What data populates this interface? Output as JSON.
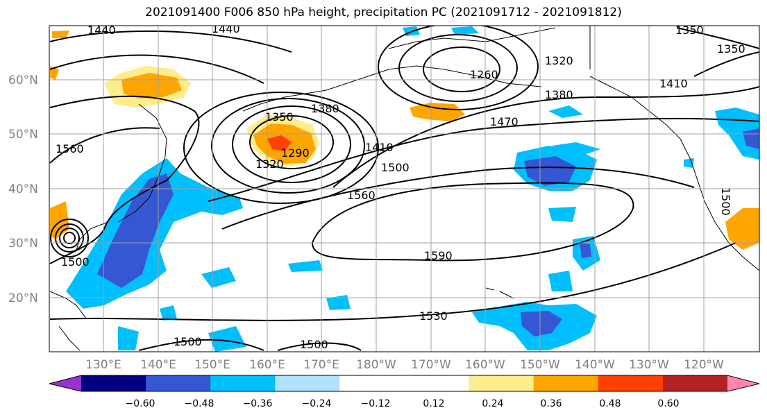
{
  "title": "2021091400 F006 850 hPa height, precipitation PC (2021091712 - 2021091812)",
  "lat_labels": [
    "60°N",
    "50°N",
    "40°N",
    "30°N",
    "20°N"
  ],
  "lon_labels": [
    "130°E",
    "140°E",
    "150°E",
    "160°E",
    "170°E",
    "180°W",
    "170°W",
    "160°W",
    "150°W",
    "140°W",
    "130°W",
    "120°W"
  ],
  "contour_labels": [
    "1440",
    "1440",
    "1350",
    "1350",
    "1320",
    "1260",
    "1380",
    "1410",
    "1380",
    "1470",
    "1350",
    "1290",
    "1320",
    "1410",
    "1500",
    "1560",
    "1560",
    "1590",
    "1530",
    "1500",
    "1500",
    "1500",
    "1500"
  ],
  "colorbar": {
    "colors": [
      "#9932cc",
      "#000080",
      "#3557d4",
      "#00bfff",
      "#b0e2ff",
      "#ffffff",
      "#ffffff",
      "#ffec8b",
      "#ffa500",
      "#ff4000",
      "#b22222",
      "#ff88b0"
    ],
    "tick_labels": [
      "−0.60",
      "−0.48",
      "−0.36",
      "−0.24",
      "−0.12",
      "0.12",
      "0.24",
      "0.36",
      "0.48",
      "0.60"
    ]
  },
  "colors": {
    "gridline": "#a0a0a0",
    "contour": "#000000",
    "coastline": "#000000",
    "tick_text": "#808080"
  }
}
